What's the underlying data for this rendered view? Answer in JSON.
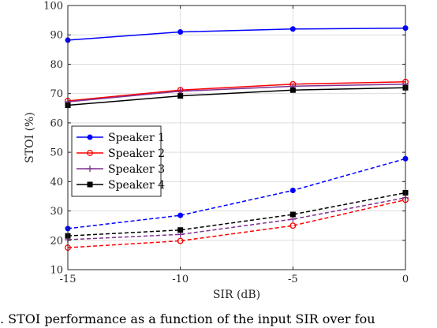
{
  "chart_data": {
    "type": "line",
    "xlabel": "SIR (dB)",
    "ylabel": "STOI (%)",
    "xlim": [
      -15,
      0
    ],
    "ylim": [
      10,
      100
    ],
    "xticks": [
      -15,
      -10,
      -5,
      0
    ],
    "yticks": [
      10,
      20,
      30,
      40,
      50,
      60,
      70,
      80,
      90,
      100
    ],
    "grid": true,
    "legend_position": "center-left",
    "x": [
      -15,
      -10,
      -5,
      0
    ],
    "series": [
      {
        "name": "Speaker 1",
        "color": "#0000ff",
        "marker": "dot",
        "style": "solid",
        "legend": true,
        "values": [
          88.2,
          91.0,
          92.0,
          92.3
        ]
      },
      {
        "name": "Speaker 2",
        "color": "#ff0000",
        "marker": "circle",
        "style": "solid",
        "legend": true,
        "values": [
          67.5,
          71.2,
          73.2,
          74.0
        ]
      },
      {
        "name": "Speaker 3",
        "color": "#7e2f8e",
        "marker": "plus",
        "style": "solid",
        "legend": true,
        "values": [
          67.2,
          70.8,
          72.5,
          73.2
        ]
      },
      {
        "name": "Speaker 4",
        "color": "#000000",
        "marker": "square",
        "style": "solid",
        "legend": true,
        "values": [
          66.0,
          69.2,
          71.2,
          72.0
        ]
      },
      {
        "name": "",
        "color": "#0000ff",
        "marker": "dot",
        "style": "dashed",
        "legend": false,
        "values": [
          24.0,
          28.5,
          37.0,
          47.8
        ]
      },
      {
        "name": "",
        "color": "#ff0000",
        "marker": "circle",
        "style": "dashed",
        "legend": false,
        "values": [
          17.5,
          19.8,
          25.0,
          33.8
        ]
      },
      {
        "name": "",
        "color": "#7e2f8e",
        "marker": "plus",
        "style": "dashed",
        "legend": false,
        "values": [
          20.2,
          22.0,
          27.2,
          34.5
        ]
      },
      {
        "name": "",
        "color": "#000000",
        "marker": "square",
        "style": "dashed",
        "legend": false,
        "values": [
          21.5,
          23.5,
          28.8,
          36.2
        ]
      }
    ]
  },
  "caption": ".   STOI performance as a function of the input SIR over fou"
}
